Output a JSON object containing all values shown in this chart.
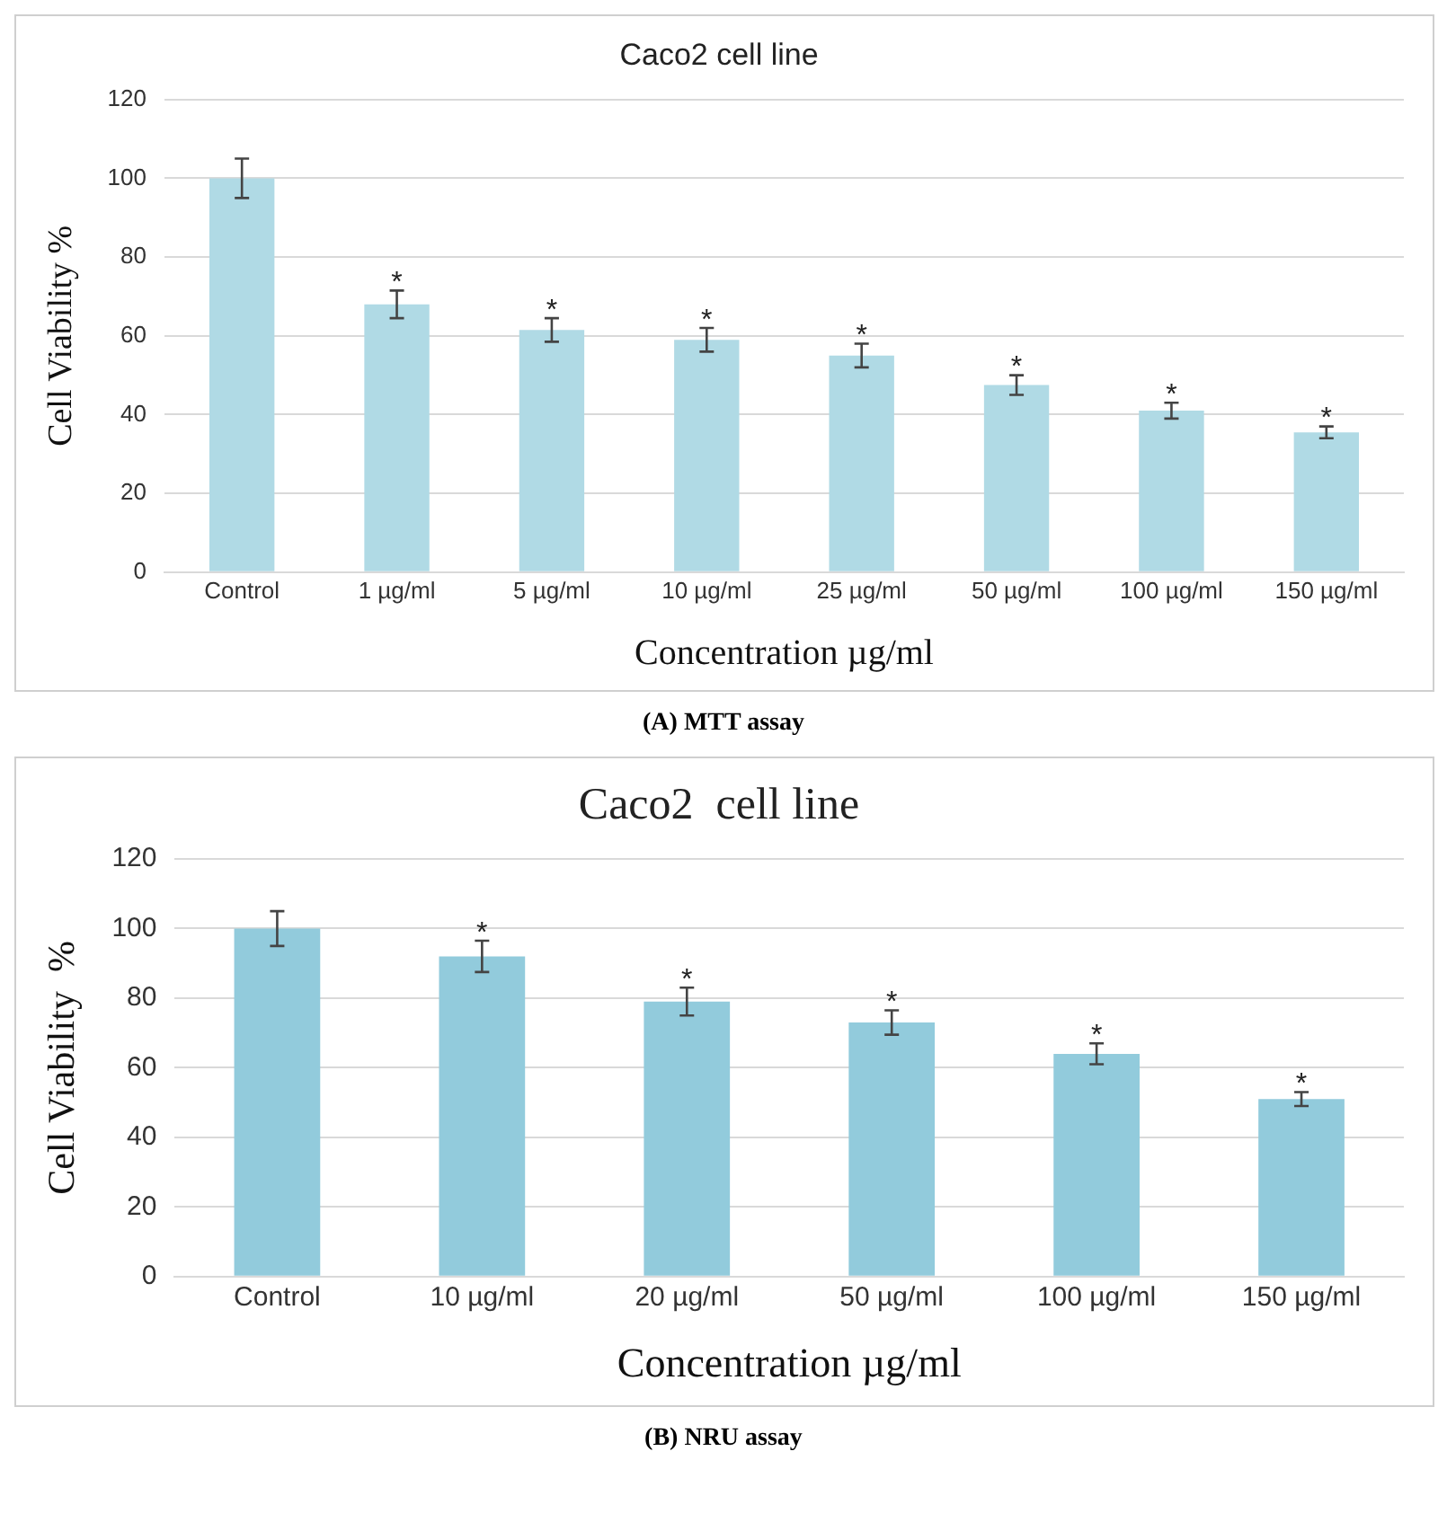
{
  "chart_data": [
    {
      "type": "bar",
      "title": "Caco2 cell line",
      "xlabel": "Concentration µg/ml",
      "ylabel": "Cell Viability %",
      "categories": [
        "Control",
        "1 µg/ml",
        "5 µg/ml",
        "10 µg/ml",
        "25 µg/ml",
        "50 µg/ml",
        "100 µg/ml",
        "150 µg/ml"
      ],
      "values": [
        100,
        68,
        61.5,
        59,
        55,
        47.5,
        41,
        35.5
      ],
      "errors": [
        5,
        3.5,
        3,
        3,
        3,
        2.5,
        2,
        1.5
      ],
      "color": "#b0dae5",
      "ylim": [
        0,
        120
      ],
      "yticks": [
        0,
        20,
        40,
        60,
        80,
        100,
        120
      ],
      "grid": "y",
      "legend": false,
      "annotations": [
        {
          "text": "*",
          "x": "1 µg/ml",
          "y": 71.5
        },
        {
          "text": "*",
          "x": "5 µg/ml",
          "y": 64.5
        },
        {
          "text": "*",
          "x": "10 µg/ml",
          "y": 62
        },
        {
          "text": "*",
          "x": "25 µg/ml",
          "y": 58
        },
        {
          "text": "*",
          "x": "50 µg/ml",
          "y": 50
        },
        {
          "text": "*",
          "x": "100 µg/ml",
          "y": 43
        },
        {
          "text": "*",
          "x": "150 µg/ml",
          "y": 37
        },
        "(A) MTT assay"
      ]
    },
    {
      "type": "bar",
      "title": "Caco2  cell line",
      "xlabel": "Concentration µg/ml",
      "ylabel": "Cell Viability  %",
      "categories": [
        "Control",
        "10 µg/ml",
        "20 µg/ml",
        "50 µg/ml",
        "100 µg/ml",
        "150 µg/ml"
      ],
      "values": [
        100,
        92,
        79,
        73,
        64,
        51
      ],
      "errors": [
        5,
        4.5,
        4,
        3.5,
        3,
        2
      ],
      "color": "#92cbdc",
      "ylim": [
        0,
        120
      ],
      "yticks": [
        0,
        20,
        40,
        60,
        80,
        100,
        120
      ],
      "grid": "y",
      "legend": false,
      "annotations": [
        {
          "text": "*",
          "x": "10 µg/ml",
          "y": 96.5
        },
        {
          "text": "*",
          "x": "20 µg/ml",
          "y": 83
        },
        {
          "text": "*",
          "x": "50 µg/ml",
          "y": 76.5
        },
        {
          "text": "*",
          "x": "100 µg/ml",
          "y": 67
        },
        {
          "text": "*",
          "x": "150 µg/ml",
          "y": 53
        },
        "(B) NRU assay"
      ]
    }
  ]
}
